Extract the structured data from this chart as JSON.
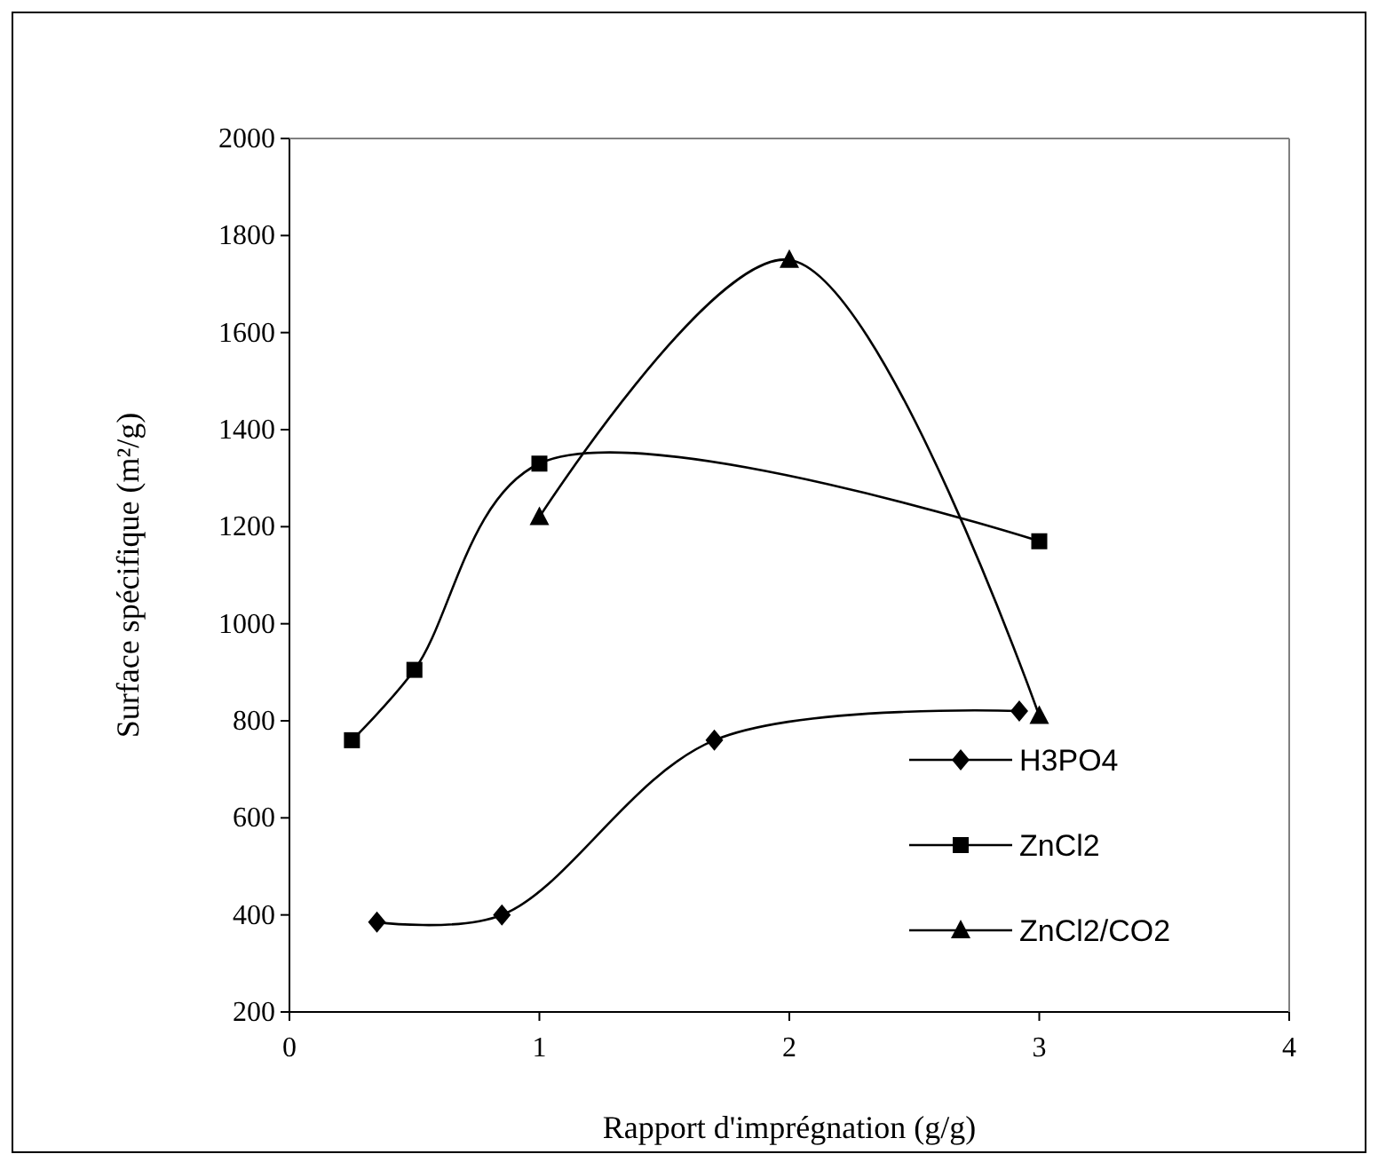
{
  "chart_data": {
    "type": "line",
    "xlabel": "Rapport d'imprégnation (g/g)",
    "ylabel": "Surface spécifique (m²/g)",
    "xlim": [
      0,
      4
    ],
    "xticks": [
      0,
      1,
      2,
      3,
      4
    ],
    "ylim": [
      200,
      2000
    ],
    "yticks": [
      200,
      400,
      600,
      800,
      1000,
      1200,
      1400,
      1600,
      1800,
      2000
    ],
    "grid": false,
    "legend": "bottom right",
    "line_style": "solid",
    "series": [
      {
        "name": "H3PO4",
        "color": "#000000",
        "marker": "diamond",
        "x": [
          0.35,
          0.85,
          1.7,
          2.92
        ],
        "values": [
          385,
          400,
          760,
          820
        ]
      },
      {
        "name": "ZnCl2",
        "color": "#000000",
        "marker": "square",
        "x": [
          0.25,
          0.5,
          1,
          3
        ],
        "values": [
          760,
          905,
          1330,
          1170
        ]
      },
      {
        "name": "ZnCl2/CO2",
        "color": "#000000",
        "marker": "triangle",
        "x": [
          1,
          2,
          3
        ],
        "values": [
          1220,
          1750,
          810
        ]
      }
    ]
  }
}
